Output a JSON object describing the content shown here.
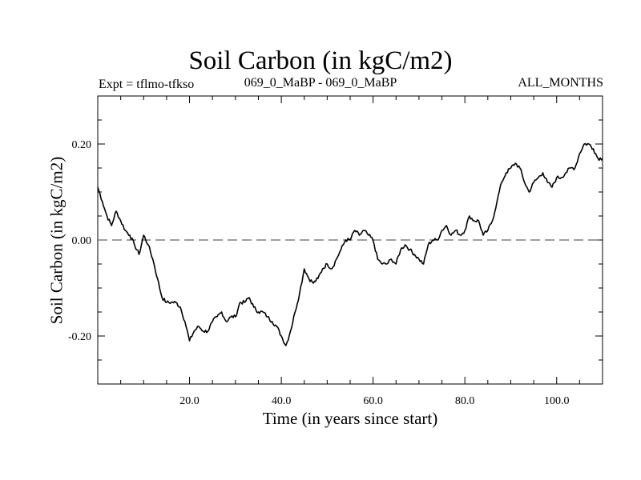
{
  "header": {
    "title": "Soil Carbon (in kgC/m2)",
    "subtitle_left": "Expt = tflmo-tfkso",
    "subtitle_center": "069_0_MaBP - 069_0_MaBP",
    "subtitle_right": "ALL_MONTHS"
  },
  "chart_data": {
    "type": "line",
    "title": "Soil Carbon (in kgC/m2)",
    "xlabel": "Time (in years since start)",
    "ylabel": "Soil Carbon (in kgC/m2)",
    "xlim": [
      0,
      110
    ],
    "ylim": [
      -0.3,
      0.3
    ],
    "x_ticks": [
      20,
      40,
      60,
      80,
      100
    ],
    "x_tick_labels": [
      "20.0",
      "40.0",
      "60.0",
      "80.0",
      "100.0"
    ],
    "y_ticks": [
      -0.2,
      0.0,
      0.2
    ],
    "y_tick_labels": [
      "-0.20",
      "0.00",
      "0.20"
    ],
    "reference_line": {
      "y": 0.0,
      "style": "dashed"
    },
    "grid": false,
    "series": [
      {
        "x": [
          0,
          1,
          2,
          3,
          4,
          5,
          6,
          7,
          8,
          9,
          10,
          11,
          12,
          13,
          14,
          15,
          16,
          17,
          18,
          19,
          20,
          21,
          22,
          23,
          24,
          25,
          26,
          27,
          28,
          29,
          30,
          31,
          32,
          33,
          34,
          35,
          36,
          37,
          38,
          39,
          40,
          41,
          42,
          43,
          44,
          45,
          46,
          47,
          48,
          49,
          50,
          51,
          52,
          53,
          54,
          55,
          56,
          57,
          58,
          59,
          60,
          61,
          62,
          63,
          64,
          65,
          66,
          67,
          68,
          69,
          70,
          71,
          72,
          73,
          74,
          75,
          76,
          77,
          78,
          79,
          80,
          81,
          82,
          83,
          84,
          85,
          86,
          87,
          88,
          89,
          90,
          91,
          92,
          93,
          94,
          95,
          96,
          97,
          98,
          99,
          100,
          101,
          102,
          103,
          104,
          105,
          106,
          107,
          108,
          109,
          110
        ],
        "y": [
          0.11,
          0.08,
          0.05,
          0.03,
          0.06,
          0.04,
          0.02,
          0.01,
          -0.01,
          -0.03,
          0.01,
          -0.01,
          -0.04,
          -0.08,
          -0.12,
          -0.13,
          -0.13,
          -0.13,
          -0.14,
          -0.17,
          -0.21,
          -0.19,
          -0.18,
          -0.19,
          -0.19,
          -0.17,
          -0.16,
          -0.15,
          -0.17,
          -0.16,
          -0.16,
          -0.13,
          -0.13,
          -0.12,
          -0.14,
          -0.15,
          -0.15,
          -0.16,
          -0.17,
          -0.18,
          -0.2,
          -0.22,
          -0.19,
          -0.15,
          -0.11,
          -0.06,
          -0.08,
          -0.09,
          -0.08,
          -0.06,
          -0.05,
          -0.06,
          -0.04,
          -0.02,
          0.0,
          0.0,
          0.02,
          0.01,
          0.02,
          0.01,
          0.0,
          -0.04,
          -0.05,
          -0.05,
          -0.04,
          -0.05,
          -0.02,
          -0.01,
          -0.02,
          -0.03,
          -0.04,
          -0.05,
          -0.01,
          0.0,
          0.0,
          0.02,
          0.03,
          0.01,
          0.02,
          0.01,
          0.02,
          0.05,
          0.04,
          0.04,
          0.01,
          0.02,
          0.04,
          0.08,
          0.12,
          0.14,
          0.15,
          0.16,
          0.15,
          0.12,
          0.1,
          0.12,
          0.13,
          0.14,
          0.12,
          0.11,
          0.13,
          0.13,
          0.14,
          0.15,
          0.15,
          0.18,
          0.2,
          0.2,
          0.19,
          0.17,
          0.17
        ]
      }
    ]
  }
}
